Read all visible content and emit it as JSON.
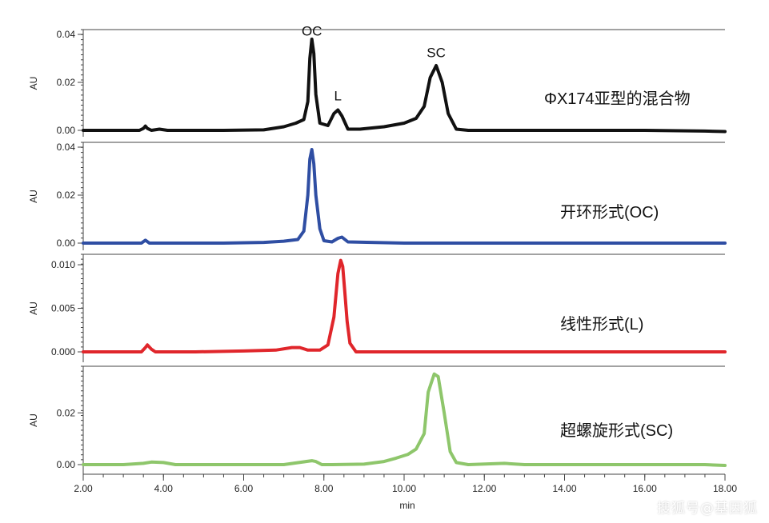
{
  "watermark": "搜狐号@基因狐",
  "chart_data": {
    "type": "line",
    "xlabel": "min",
    "xlim": [
      2.0,
      18.0
    ],
    "xticks": [
      "2.00",
      "4.00",
      "6.00",
      "8.00",
      "10.00",
      "12.00",
      "14.00",
      "16.00",
      "18.00"
    ],
    "panels": [
      {
        "caption": "ΦX174亚型的混合物",
        "ylabel": "AU",
        "ylim": [
          -0.002,
          0.042
        ],
        "yticks": [
          {
            "v": 0.0,
            "label": "0.00"
          },
          {
            "v": 0.02,
            "label": "0.02"
          },
          {
            "v": 0.04,
            "label": "0.04"
          }
        ],
        "color": "#111111",
        "annotations": [
          {
            "text": "OC",
            "x": 7.7,
            "y": 0.0395
          },
          {
            "text": "L",
            "x": 8.35,
            "y": 0.0125
          },
          {
            "text": "SC",
            "x": 10.8,
            "y": 0.0305
          }
        ],
        "series": [
          {
            "x": [
              2.0,
              3.4,
              3.5,
              3.55,
              3.6,
              3.7,
              3.9,
              4.1,
              5.5,
              6.5,
              7.0,
              7.3,
              7.5,
              7.6,
              7.65,
              7.7,
              7.75,
              7.8,
              7.9,
              8.1,
              8.25,
              8.35,
              8.45,
              8.6,
              8.9,
              9.5,
              10.0,
              10.3,
              10.5,
              10.65,
              10.8,
              10.95,
              11.1,
              11.3,
              11.6,
              13.0,
              16.0,
              17.5,
              18.0
            ],
            "y": [
              0.0,
              0.0,
              0.0008,
              0.0018,
              0.0008,
              0.0,
              0.0005,
              0.0,
              0.0,
              0.0002,
              0.0015,
              0.003,
              0.0045,
              0.012,
              0.03,
              0.038,
              0.032,
              0.015,
              0.003,
              0.002,
              0.007,
              0.0085,
              0.006,
              0.0005,
              0.0005,
              0.0015,
              0.003,
              0.005,
              0.01,
              0.022,
              0.027,
              0.02,
              0.007,
              0.0005,
              0.0,
              0.0,
              0.0,
              -0.0003,
              -0.0005
            ]
          }
        ]
      },
      {
        "caption": "开环形式(OC)",
        "ylabel": "AU",
        "ylim": [
          -0.002,
          0.042
        ],
        "yticks": [
          {
            "v": 0.0,
            "label": "0.00"
          },
          {
            "v": 0.02,
            "label": "0.02"
          },
          {
            "v": 0.04,
            "label": "0.04"
          }
        ],
        "color": "#2f4ea3",
        "annotations": [],
        "series": [
          {
            "x": [
              2.0,
              3.45,
              3.55,
              3.65,
              3.8,
              5.5,
              6.5,
              7.0,
              7.35,
              7.5,
              7.6,
              7.65,
              7.7,
              7.75,
              7.8,
              7.9,
              8.0,
              8.2,
              8.35,
              8.45,
              8.6,
              10.0,
              12.0,
              16.0,
              18.0
            ],
            "y": [
              0.0,
              0.0,
              0.0012,
              0.0,
              0.0,
              0.0,
              0.0003,
              0.0008,
              0.0015,
              0.005,
              0.02,
              0.035,
              0.039,
              0.033,
              0.02,
              0.006,
              0.001,
              0.0005,
              0.002,
              0.0025,
              0.0005,
              0.0,
              0.0,
              0.0,
              0.0
            ]
          }
        ]
      },
      {
        "caption": "线性形式(L)",
        "ylabel": "AU",
        "ylim": [
          -0.0005,
          0.0112
        ],
        "yticks": [
          {
            "v": 0.0,
            "label": "0.000"
          },
          {
            "v": 0.005,
            "label": "0.005"
          },
          {
            "v": 0.01,
            "label": "0.010"
          }
        ],
        "color": "#e0262b",
        "annotations": [],
        "series": [
          {
            "x": [
              2.0,
              3.45,
              3.55,
              3.6,
              3.7,
              3.8,
              4.8,
              6.0,
              6.8,
              7.2,
              7.4,
              7.6,
              7.9,
              8.1,
              8.25,
              8.35,
              8.42,
              8.47,
              8.52,
              8.58,
              8.65,
              8.8,
              9.5,
              12.0,
              18.0
            ],
            "y": [
              0.0,
              0.0,
              0.0005,
              0.0008,
              0.0003,
              0.0,
              0.0,
              0.0001,
              0.0002,
              0.0005,
              0.0005,
              0.0002,
              0.0002,
              0.0008,
              0.004,
              0.009,
              0.0105,
              0.0098,
              0.007,
              0.0035,
              0.001,
              0.0,
              0.0,
              0.0,
              0.0
            ]
          }
        ]
      },
      {
        "caption": "超螺旋形式(SC)",
        "ylabel": "AU",
        "ylim": [
          -0.002,
          0.038
        ],
        "yticks": [
          {
            "v": 0.0,
            "label": "0.00"
          },
          {
            "v": 0.02,
            "label": "0.02"
          }
        ],
        "color": "#8ec66b",
        "annotations": [],
        "series": [
          {
            "x": [
              2.0,
              3.0,
              3.5,
              3.7,
              4.0,
              4.3,
              5.0,
              7.0,
              7.7,
              7.8,
              7.95,
              8.2,
              9.0,
              9.5,
              9.8,
              10.1,
              10.3,
              10.5,
              10.6,
              10.75,
              10.85,
              11.0,
              11.15,
              11.3,
              11.6,
              12.5,
              13.0,
              16.0,
              17.5,
              18.0
            ],
            "y": [
              0.0,
              0.0,
              0.0005,
              0.001,
              0.0008,
              0.0,
              0.0,
              0.0,
              0.0015,
              0.0012,
              0.0,
              0.0,
              0.0002,
              0.0012,
              0.0025,
              0.004,
              0.006,
              0.012,
              0.028,
              0.035,
              0.034,
              0.02,
              0.005,
              0.0008,
              0.0,
              0.0005,
              0.0,
              0.0,
              0.0,
              -0.0003
            ]
          }
        ]
      }
    ]
  }
}
